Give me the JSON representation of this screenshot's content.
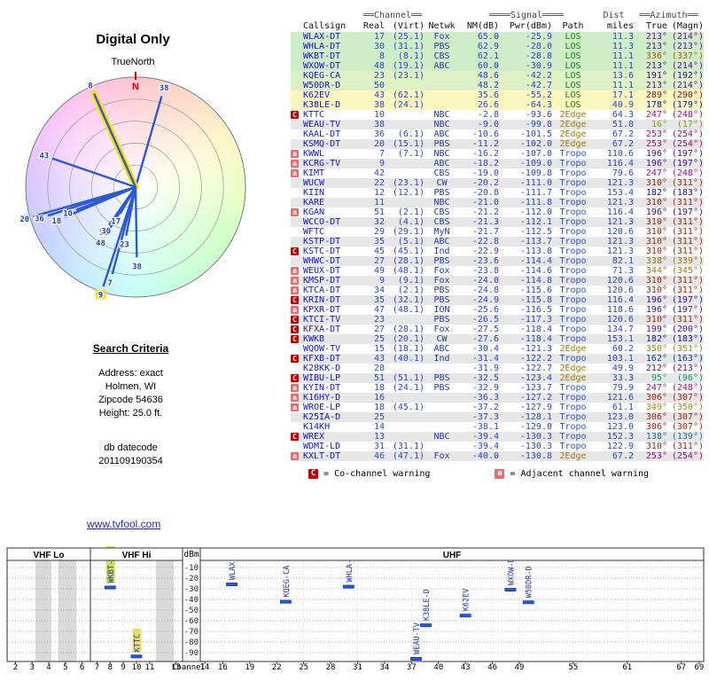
{
  "title": "Digital Only",
  "link": "www.tvfool.com",
  "radar": {
    "north_label": "TrueNorth",
    "n_marker": "N",
    "lines": [
      {
        "ch": "38",
        "az": 16,
        "len": 0.86
      },
      {
        "ch": "8",
        "az": 336,
        "len": 0.93,
        "hl": true
      },
      {
        "ch": "43",
        "az": 289,
        "len": 0.8
      },
      {
        "ch": "20",
        "az": 254,
        "len": 0.97
      },
      {
        "ch": "36",
        "az": 252,
        "len": 0.84
      },
      {
        "ch": "18",
        "az": 247,
        "len": 0.7
      },
      {
        "ch": "10",
        "az": 249,
        "len": 0.58
      },
      {
        "ch": "48",
        "az": 212,
        "len": 0.52
      },
      {
        "ch": "50",
        "az": 215,
        "len": 0.42
      },
      {
        "ch": "17",
        "az": 210,
        "len": 0.28
      },
      {
        "ch": "30",
        "az": 214,
        "len": 0.4
      },
      {
        "ch": "23",
        "az": 191,
        "len": 0.45
      },
      {
        "ch": "38",
        "az": 179,
        "len": 0.64
      },
      {
        "ch": "7",
        "az": 195,
        "len": 0.82
      },
      {
        "ch": "9",
        "az": 198,
        "len": 0.95,
        "label_hl": true
      }
    ]
  },
  "search_criteria": {
    "heading": "Search Criteria",
    "lines": [
      "Address: exact",
      "Holmen, WI",
      "Zipcode 54636",
      "Height: 25.0 ft."
    ],
    "db_label": "db datecode",
    "db_value": "201109190354"
  },
  "table": {
    "group_headers": {
      "channel": "══Channel══",
      "signal": "════Signal════",
      "dist": "Dist",
      "azimuth": "══Azimuth══"
    },
    "columns": {
      "callsign": "Callsign",
      "real": "Real",
      "virt": "(Virt)",
      "netwk": "Netwk",
      "nm": "NM(dB)",
      "pwr": "Pwr(dBm)",
      "path": "Path",
      "miles": "miles",
      "true": "True",
      "magn": "(Magn)"
    },
    "rows": [
      {
        "w": "",
        "c": "WLAX-DT",
        "r": "17",
        "v": "(25.1)",
        "n": "Fox",
        "nm": "65.0",
        "pw": "-25.9",
        "p": "LOS",
        "mi": "11.3",
        "t": 213,
        "m": 214
      },
      {
        "w": "",
        "c": "WHLA-DT",
        "r": "30",
        "v": "(31.1)",
        "n": "PBS",
        "nm": "62.9",
        "pw": "-28.0",
        "p": "LOS",
        "mi": "11.3",
        "t": 213,
        "m": 213
      },
      {
        "w": "",
        "c": "WKBT-DT",
        "r": "8",
        "v": "(8.1)",
        "n": "CBS",
        "nm": "62.1",
        "pw": "-28.8",
        "p": "LOS",
        "mi": "11.1",
        "t": 336,
        "m": 337
      },
      {
        "w": "",
        "c": "WXOW-DT",
        "r": "48",
        "v": "(19.1)",
        "n": "ABC",
        "nm": "60.0",
        "pw": "-30.9",
        "p": "LOS",
        "mi": "11.1",
        "t": 213,
        "m": 214
      },
      {
        "w": "",
        "c": "KQEG-CA",
        "r": "23",
        "v": "(23.1)",
        "n": "",
        "nm": "48.6",
        "pw": "-42.2",
        "p": "LOS",
        "mi": "13.6",
        "t": 191,
        "m": 192
      },
      {
        "w": "",
        "c": "W50DR-D",
        "r": "50",
        "v": "",
        "n": "",
        "nm": "48.2",
        "pw": "-42.7",
        "p": "LOS",
        "mi": "11.1",
        "t": 213,
        "m": 214
      },
      {
        "w": "",
        "c": "K62EV",
        "r": "43",
        "v": "(62.1)",
        "n": "",
        "nm": "35.6",
        "pw": "-55.2",
        "p": "LOS",
        "mi": "17.1",
        "t": 289,
        "m": 290
      },
      {
        "w": "",
        "c": "K38LE-D",
        "r": "38",
        "v": "(24.1)",
        "n": "",
        "nm": "26.6",
        "pw": "-64.3",
        "p": "LOS",
        "mi": "40.9",
        "t": 178,
        "m": 179
      },
      {
        "w": "C",
        "c": "KTTC",
        "r": "10",
        "v": "",
        "n": "NBC",
        "nm": "-2.8",
        "pw": "-93.6",
        "p": "2Edge",
        "mi": "64.3",
        "t": 247,
        "m": 248
      },
      {
        "w": "",
        "c": "WEAU-TV",
        "r": "38",
        "v": "",
        "n": "NBC",
        "nm": "-9.0",
        "pw": "-99.8",
        "p": "2Edge",
        "mi": "51.8",
        "t": 16,
        "m": 17
      },
      {
        "w": "",
        "c": "KAAL-DT",
        "r": "36",
        "v": "(6.1)",
        "n": "ABC",
        "nm": "-10.6",
        "pw": "-101.5",
        "p": "2Edge",
        "mi": "67.2",
        "t": 253,
        "m": 254
      },
      {
        "w": "",
        "c": "KSMQ-DT",
        "r": "20",
        "v": "(15.1)",
        "n": "PBS",
        "nm": "-11.2",
        "pw": "-102.0",
        "p": "2Edge",
        "mi": "67.2",
        "t": 253,
        "m": 254
      },
      {
        "w": "a",
        "c": "KWWL",
        "r": "7",
        "v": "(7.1)",
        "n": "NBC",
        "nm": "-16.2",
        "pw": "-107.0",
        "p": "Tropo",
        "mi": "110.6",
        "t": 196,
        "m": 197
      },
      {
        "w": "a",
        "c": "KCRG-TV",
        "r": "9",
        "v": "",
        "n": "ABC",
        "nm": "-18.2",
        "pw": "-109.0",
        "p": "Tropo",
        "mi": "116.4",
        "t": 196,
        "m": 197
      },
      {
        "w": "a",
        "c": "KIMT",
        "r": "42",
        "v": "",
        "n": "CBS",
        "nm": "-19.0",
        "pw": "-109.8",
        "p": "Tropo",
        "mi": "79.6",
        "t": 247,
        "m": 248
      },
      {
        "w": "",
        "c": "WUCW",
        "r": "22",
        "v": "(23.1)",
        "n": "CW",
        "nm": "-20.2",
        "pw": "-111.0",
        "p": "Tropo",
        "mi": "121.3",
        "t": 310,
        "m": 311
      },
      {
        "w": "",
        "c": "KIIN",
        "r": "12",
        "v": "(12.1)",
        "n": "PBS",
        "nm": "-20.8",
        "pw": "-111.7",
        "p": "Tropo",
        "mi": "153.4",
        "t": 182,
        "m": 183
      },
      {
        "w": "",
        "c": "KARE",
        "r": "11",
        "v": "",
        "n": "NBC",
        "nm": "-21.0",
        "pw": "-111.8",
        "p": "Tropo",
        "mi": "121.3",
        "t": 310,
        "m": 311
      },
      {
        "w": "a",
        "c": "KGAN",
        "r": "51",
        "v": "(2.1)",
        "n": "CBS",
        "nm": "-21.2",
        "pw": "-112.0",
        "p": "Tropo",
        "mi": "116.4",
        "t": 196,
        "m": 197
      },
      {
        "w": "",
        "c": "WCCO-DT",
        "r": "32",
        "v": "(4.1)",
        "n": "CBS",
        "nm": "-21.3",
        "pw": "-112.1",
        "p": "Tropo",
        "mi": "121.3",
        "t": 310,
        "m": 311
      },
      {
        "w": "",
        "c": "WFTC",
        "r": "29",
        "v": "(29.1)",
        "n": "MyN",
        "nm": "-21.7",
        "pw": "-112.5",
        "p": "Tropo",
        "mi": "120.6",
        "t": 310,
        "m": 311
      },
      {
        "w": "",
        "c": "KSTP-DT",
        "r": "35",
        "v": "(5.1)",
        "n": "ABC",
        "nm": "-22.8",
        "pw": "-113.7",
        "p": "Tropo",
        "mi": "121.3",
        "t": 310,
        "m": 311
      },
      {
        "w": "C",
        "c": "KSTC-DT",
        "r": "45",
        "v": "(45.1)",
        "n": "Ind",
        "nm": "-22.9",
        "pw": "-113.8",
        "p": "Tropo",
        "mi": "121.3",
        "t": 310,
        "m": 311
      },
      {
        "w": "",
        "c": "WHWC-DT",
        "r": "27",
        "v": "(28.1)",
        "n": "PBS",
        "nm": "-23.6",
        "pw": "-114.4",
        "p": "Tropo",
        "mi": "82.1",
        "t": 338,
        "m": 339
      },
      {
        "w": "a",
        "c": "WEUX-DT",
        "r": "49",
        "v": "(48.1)",
        "n": "Fox",
        "nm": "-23.8",
        "pw": "-114.6",
        "p": "Tropo",
        "mi": "71.3",
        "t": 344,
        "m": 345
      },
      {
        "w": "a",
        "c": "KMSP-DT",
        "r": "9",
        "v": "(9.1)",
        "n": "Fox",
        "nm": "-24.0",
        "pw": "-114.8",
        "p": "Tropo",
        "mi": "120.6",
        "t": 310,
        "m": 311
      },
      {
        "w": "a",
        "c": "KTCA-DT",
        "r": "34",
        "v": "(2.1)",
        "n": "PBS",
        "nm": "-24.8",
        "pw": "-115.6",
        "p": "Tropo",
        "mi": "120.6",
        "t": 310,
        "m": 311
      },
      {
        "w": "C",
        "c": "KRIN-DT",
        "r": "35",
        "v": "(32.1)",
        "n": "PBS",
        "nm": "-24.9",
        "pw": "-115.8",
        "p": "Tropo",
        "mi": "116.4",
        "t": 196,
        "m": 197
      },
      {
        "w": "a",
        "c": "KPXR-DT",
        "r": "47",
        "v": "(48.1)",
        "n": "ION",
        "nm": "-25.6",
        "pw": "-116.5",
        "p": "Tropo",
        "mi": "118.6",
        "t": 196,
        "m": 197
      },
      {
        "w": "C",
        "c": "KTCI-TV",
        "r": "23",
        "v": "",
        "n": "PBS",
        "nm": "-26.5",
        "pw": "-117.3",
        "p": "Tropo",
        "mi": "120.6",
        "t": 310,
        "m": 311
      },
      {
        "w": "C",
        "c": "KFXA-DT",
        "r": "27",
        "v": "(28.1)",
        "n": "Fox",
        "nm": "-27.5",
        "pw": "-118.4",
        "p": "Tropo",
        "mi": "134.7",
        "t": 199,
        "m": 200
      },
      {
        "w": "C",
        "c": "KWKB",
        "r": "25",
        "v": "(20.1)",
        "n": "CW",
        "nm": "-27.6",
        "pw": "-118.4",
        "p": "Tropo",
        "mi": "153.1",
        "t": 182,
        "m": 183
      },
      {
        "w": "",
        "c": "WQOW-TV",
        "r": "15",
        "v": "(18.1)",
        "n": "ABC",
        "nm": "-30.4",
        "pw": "-121.3",
        "p": "2Edge",
        "mi": "60.2",
        "t": 350,
        "m": 351
      },
      {
        "w": "C",
        "c": "KFXB-DT",
        "r": "43",
        "v": "(40.1)",
        "n": "Ind",
        "nm": "-31.4",
        "pw": "-122.2",
        "p": "Tropo",
        "mi": "103.1",
        "t": 162,
        "m": 163
      },
      {
        "w": "",
        "c": "K28KK-D",
        "r": "28",
        "v": "",
        "n": "",
        "nm": "-31.9",
        "pw": "-122.7",
        "p": "2Edge",
        "mi": "49.9",
        "t": 212,
        "m": 213
      },
      {
        "w": "C",
        "c": "WIBU-LP",
        "r": "51",
        "v": "(51.1)",
        "n": "PBS",
        "nm": "-32.5",
        "pw": "-123.4",
        "p": "2Edge",
        "mi": "33.3",
        "t": 95,
        "m": 96
      },
      {
        "w": "a",
        "c": "KYIN-DT",
        "r": "18",
        "v": "(24.1)",
        "n": "PBS",
        "nm": "-32.9",
        "pw": "-123.7",
        "p": "Tropo",
        "mi": "79.9",
        "t": 247,
        "m": 248
      },
      {
        "w": "a",
        "c": "K16HY-D",
        "r": "16",
        "v": "",
        "n": "",
        "nm": "-36.3",
        "pw": "-127.2",
        "p": "Tropo",
        "mi": "121.6",
        "t": 306,
        "m": 307
      },
      {
        "w": "a",
        "c": "WROE-LP",
        "r": "18",
        "v": "(45.1)",
        "n": "",
        "nm": "-37.2",
        "pw": "-127.9",
        "p": "Tropo",
        "mi": "61.1",
        "t": 349,
        "m": 350
      },
      {
        "w": "",
        "c": "K25IA-D",
        "r": "25",
        "v": "",
        "n": "",
        "nm": "-37.3",
        "pw": "-128.1",
        "p": "Tropo",
        "mi": "123.0",
        "t": 306,
        "m": 307
      },
      {
        "w": "",
        "c": "K14KH",
        "r": "14",
        "v": "",
        "n": "",
        "nm": "-38.1",
        "pw": "-129.0",
        "p": "Tropo",
        "mi": "123.0",
        "t": 306,
        "m": 307
      },
      {
        "w": "C",
        "c": "WREX",
        "r": "13",
        "v": "",
        "n": "NBC",
        "nm": "-39.4",
        "pw": "-130.3",
        "p": "Tropo",
        "mi": "152.3",
        "t": 138,
        "m": 139
      },
      {
        "w": "",
        "c": "WDMI-LD",
        "r": "31",
        "v": "(31.1)",
        "n": "",
        "nm": "-39.4",
        "pw": "-130.3",
        "p": "Tropo",
        "mi": "122.9",
        "t": 310,
        "m": 311
      },
      {
        "w": "a",
        "c": "KXLT-DT",
        "r": "46",
        "v": "(47.1)",
        "n": "Fox",
        "nm": "-40.0",
        "pw": "-130.8",
        "p": "2Edge",
        "mi": "67.2",
        "t": 253,
        "m": 254
      }
    ]
  },
  "legend": {
    "co": {
      "mark": "C",
      "text": "= Co-channel warning"
    },
    "adj": {
      "mark": "a",
      "text": "= Adjacent channel warning"
    }
  },
  "chart": {
    "ylabel": "dBm",
    "xlabel": "Channel",
    "bands": [
      "VHF Lo",
      "VHF Hi",
      "UHF"
    ],
    "yticks": [
      -10,
      -20,
      -30,
      -40,
      -50,
      -60,
      -70,
      -80,
      -90
    ],
    "vhf_lo_ticks": [
      2,
      3,
      4,
      5,
      6
    ],
    "vhf_hi_ticks": [
      7,
      8,
      9,
      10,
      11,
      13
    ],
    "uhf_ticks": [
      14,
      16,
      19,
      22,
      25,
      28,
      31,
      34,
      37,
      40,
      43,
      46,
      49,
      55,
      61,
      67,
      69
    ],
    "highlight_colors": {
      "wkbt": "#cde24e",
      "kttc": "#e8e060"
    },
    "stations": [
      {
        "cs": "WLAX-DT",
        "ch": 17,
        "dbm": -25.9
      },
      {
        "cs": "WHLA-DT",
        "ch": 30,
        "dbm": -28.0
      },
      {
        "cs": "WKBT-DT",
        "ch": 8,
        "dbm": -28.8,
        "hl": "#cde24e"
      },
      {
        "cs": "WXOW-DT",
        "ch": 48,
        "dbm": -30.9
      },
      {
        "cs": "KQEG-CA",
        "ch": 23,
        "dbm": -42.2
      },
      {
        "cs": "W50DR-D",
        "ch": 50,
        "dbm": -42.7
      },
      {
        "cs": "K62EV",
        "ch": 43,
        "dbm": -55.2
      },
      {
        "cs": "K38LE-D",
        "ch": 38,
        "dbm": -64.3,
        "dx": 6
      },
      {
        "cs": "KTTC",
        "ch": 10,
        "dbm": -93.6,
        "hl": "#e8e060"
      },
      {
        "cs": "WEAU-TV",
        "ch": 38,
        "dbm": -99.8,
        "dx": -5
      }
    ]
  }
}
